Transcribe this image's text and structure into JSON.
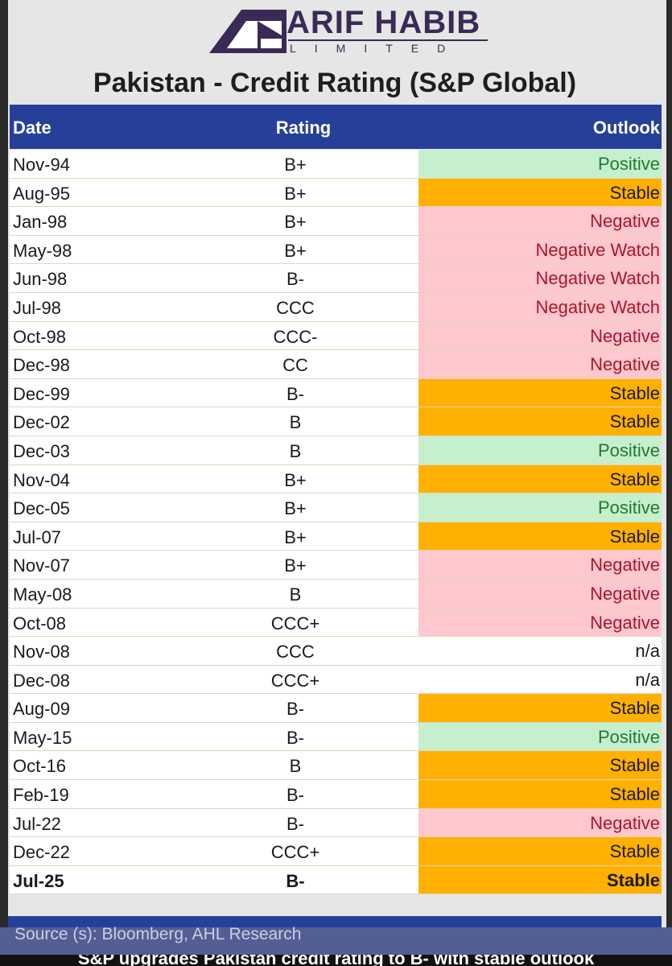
{
  "logo": {
    "name": "ARIF HABIB",
    "sub": "LIMITED"
  },
  "title": "Pakistan - Credit Rating (S&P Global)",
  "columns": {
    "date": "Date",
    "rating": "Rating",
    "outlook": "Outlook"
  },
  "rows": [
    {
      "date": "Nov-94",
      "rating": "B+",
      "outlook": "Positive"
    },
    {
      "date": "Aug-95",
      "rating": "B+",
      "outlook": "Stable"
    },
    {
      "date": "Jan-98",
      "rating": "B+",
      "outlook": "Negative"
    },
    {
      "date": "May-98",
      "rating": "B+",
      "outlook": "Negative Watch"
    },
    {
      "date": "Jun-98",
      "rating": "B-",
      "outlook": "Negative Watch"
    },
    {
      "date": "Jul-98",
      "rating": "CCC",
      "outlook": "Negative Watch"
    },
    {
      "date": "Oct-98",
      "rating": "CCC-",
      "outlook": "Negative"
    },
    {
      "date": "Dec-98",
      "rating": "CC",
      "outlook": "Negative"
    },
    {
      "date": "Dec-99",
      "rating": "B-",
      "outlook": "Stable"
    },
    {
      "date": "Dec-02",
      "rating": "B",
      "outlook": "Stable"
    },
    {
      "date": "Dec-03",
      "rating": "B",
      "outlook": "Positive"
    },
    {
      "date": "Nov-04",
      "rating": "B+",
      "outlook": "Stable"
    },
    {
      "date": "Dec-05",
      "rating": "B+",
      "outlook": "Positive"
    },
    {
      "date": "Jul-07",
      "rating": "B+",
      "outlook": "Stable"
    },
    {
      "date": "Nov-07",
      "rating": "B+",
      "outlook": "Negative"
    },
    {
      "date": "May-08",
      "rating": "B",
      "outlook": "Negative"
    },
    {
      "date": "Oct-08",
      "rating": "CCC+",
      "outlook": "Negative"
    },
    {
      "date": "Nov-08",
      "rating": "CCC",
      "outlook": "n/a"
    },
    {
      "date": "Dec-08",
      "rating": "CCC+",
      "outlook": "n/a"
    },
    {
      "date": "Aug-09",
      "rating": "B-",
      "outlook": "Stable"
    },
    {
      "date": "May-15",
      "rating": "B-",
      "outlook": "Positive"
    },
    {
      "date": "Oct-16",
      "rating": "B",
      "outlook": "Stable"
    },
    {
      "date": "Feb-19",
      "rating": "B-",
      "outlook": "Stable"
    },
    {
      "date": "Jul-22",
      "rating": "B-",
      "outlook": "Negative"
    },
    {
      "date": "Dec-22",
      "rating": "CCC+",
      "outlook": "Stable"
    },
    {
      "date": "Jul-25",
      "rating": "B-",
      "outlook": "Stable",
      "bold": true
    }
  ],
  "outlook_colors": {
    "Positive": "#c6efce",
    "Stable": "#ffb000",
    "Negative": "#ffc7ce",
    "Negative Watch": "#ffc7ce",
    "n/a": "#ffffff"
  },
  "header_color": "#26409a",
  "source": "Source (s): Bloomberg, AHL Research",
  "caption": "S&P upgrades Pakistan credit rating to B- with stable outlook"
}
